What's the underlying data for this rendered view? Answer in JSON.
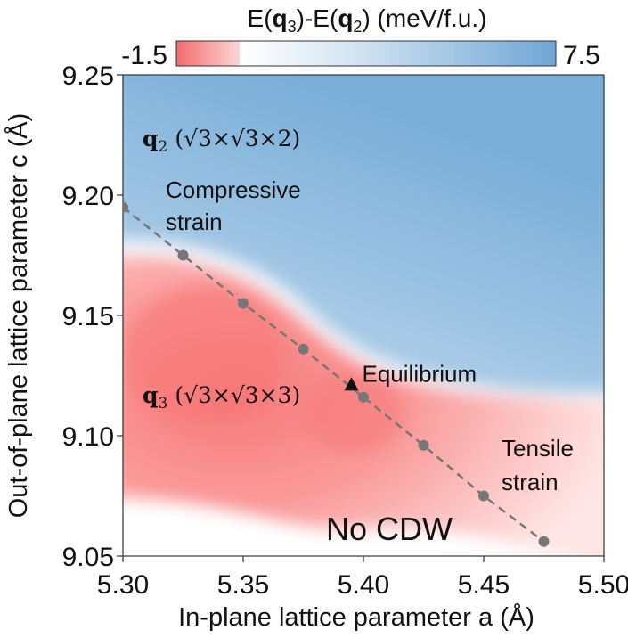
{
  "chart_data": {
    "type": "heatmap",
    "colorbar": {
      "title_prefix": "E(",
      "q_a": "q",
      "q_a_sub": "3",
      "mid": ")-E(",
      "q_b": "q",
      "q_b_sub": "2",
      "title_suffix": ") (meV/f.u.)",
      "min_label": "-1.5",
      "max_label": "7.5",
      "range": [
        -1.5,
        7.5
      ],
      "colors": {
        "low": "#f46b6b",
        "zero": "#ffffff",
        "high": "#6fa6d6"
      }
    },
    "xlabel": "In-plane lattice parameter a (Å)",
    "ylabel": "Out-of-plane lattice parameter c (Å)",
    "xlim": [
      5.3,
      5.5
    ],
    "ylim": [
      9.05,
      9.25
    ],
    "xticks": [
      "5.30",
      "5.35",
      "5.40",
      "5.45",
      "5.50"
    ],
    "yticks": [
      "9.05",
      "9.10",
      "9.15",
      "9.20",
      "9.25"
    ],
    "strain_path": {
      "x": [
        5.3,
        5.325,
        5.35,
        5.375,
        5.4,
        5.425,
        5.45,
        5.475
      ],
      "y": [
        9.195,
        9.175,
        9.155,
        9.136,
        9.116,
        9.096,
        9.075,
        9.056
      ],
      "color": "#777777"
    },
    "equilibrium": {
      "x": 5.395,
      "y": 9.121,
      "label": "Equilibrium"
    },
    "annotations": {
      "compressive_1": "Compressive",
      "compressive_2": "strain",
      "tensile_1": "Tensile",
      "tensile_2": "strain",
      "no_cdw": "No CDW"
    },
    "phase_labels": {
      "q2": {
        "q": "q",
        "sub": "2",
        "text": "(√3×√3×2)"
      },
      "q3": {
        "q": "q",
        "sub": "3",
        "text": "(√3×√3×3)"
      }
    }
  }
}
